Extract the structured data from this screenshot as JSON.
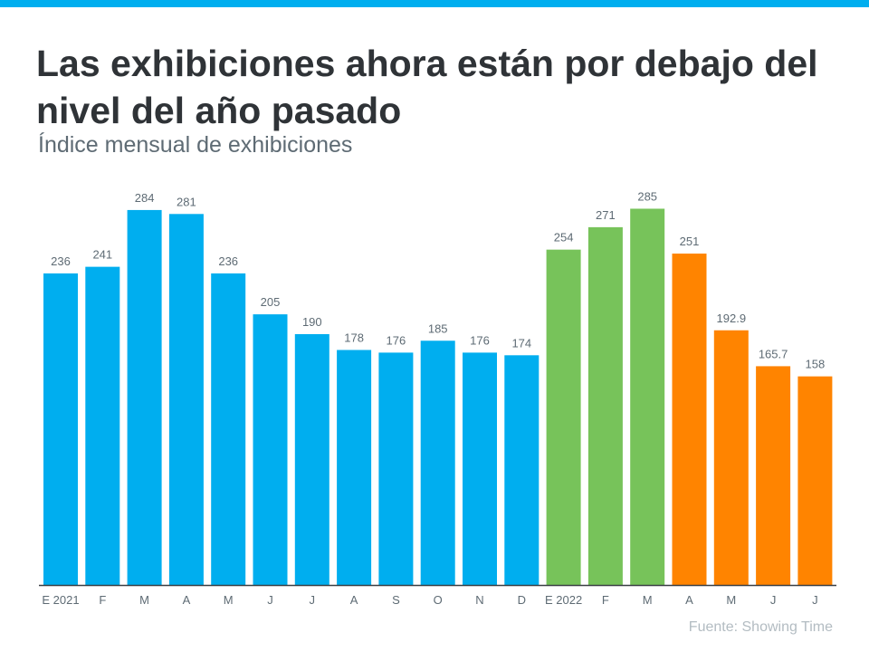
{
  "chart_data": {
    "type": "bar",
    "title": "Las exhibiciones ahora están por debajo del nivel del año pasado",
    "subtitle": "Índice mensual de exhibiciones",
    "categories": [
      "E 2021",
      "F",
      "M",
      "A",
      "M",
      "J",
      "J",
      "A",
      "S",
      "O",
      "N",
      "D",
      "E 2022",
      "F",
      "M",
      "A",
      "M",
      "J",
      "J"
    ],
    "values": [
      236,
      241,
      284,
      281,
      236,
      205,
      190,
      178,
      176,
      185,
      176,
      174,
      254,
      271,
      285,
      251,
      192.9,
      165.7,
      158
    ],
    "value_labels": [
      "236",
      "241",
      "284",
      "281",
      "236",
      "205",
      "190",
      "178",
      "176",
      "185",
      "176",
      "174",
      "254",
      "271",
      "285",
      "251",
      "192.9",
      "165.7",
      "158"
    ],
    "bar_colors": [
      "#00AEEF",
      "#00AEEF",
      "#00AEEF",
      "#00AEEF",
      "#00AEEF",
      "#00AEEF",
      "#00AEEF",
      "#00AEEF",
      "#00AEEF",
      "#00AEEF",
      "#00AEEF",
      "#00AEEF",
      "#77C35A",
      "#77C35A",
      "#77C35A",
      "#FF8400",
      "#FF8400",
      "#FF8400",
      "#FF8400"
    ],
    "ylim": [
      0,
      300
    ],
    "grid": false,
    "xlabel": "",
    "ylabel": ""
  },
  "source": "Fuente:  Showing Time"
}
